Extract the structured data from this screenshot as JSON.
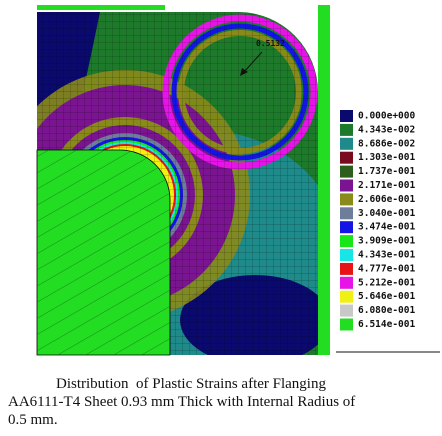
{
  "figure": {
    "annotation": "0.5132",
    "legend": {
      "entries": [
        {
          "label": "0.000e+000",
          "color": "#0a0a6e"
        },
        {
          "label": "4.343e-002",
          "color": "#1d7a2a"
        },
        {
          "label": "8.686e-002",
          "color": "#1f8a8a"
        },
        {
          "label": "1.303e-001",
          "color": "#7a0a1e"
        },
        {
          "label": "1.737e-001",
          "color": "#2e5e1c"
        },
        {
          "label": "2.171e-001",
          "color": "#7a1490"
        },
        {
          "label": "2.606e-001",
          "color": "#8a8a1a"
        },
        {
          "label": "3.040e-001",
          "color": "#6e7e9a"
        },
        {
          "label": "3.474e-001",
          "color": "#1414e6"
        },
        {
          "label": "3.909e-001",
          "color": "#18e618"
        },
        {
          "label": "4.343e-001",
          "color": "#18e6e6"
        },
        {
          "label": "4.777e-001",
          "color": "#e61414"
        },
        {
          "label": "5.212e-001",
          "color": "#e614e6"
        },
        {
          "label": "5.646e-001",
          "color": "#f0f014"
        },
        {
          "label": "6.080e-001",
          "color": "#c8c8c8"
        },
        {
          "label": "6.514e-001",
          "color": "#22dd22"
        }
      ]
    },
    "caption": [
      "Distribution  of Plastic Strains after Flanging",
      "AA6111-T4 Sheet 0.93 mm Thick with Internal Radius of",
      "0.5 mm."
    ]
  }
}
